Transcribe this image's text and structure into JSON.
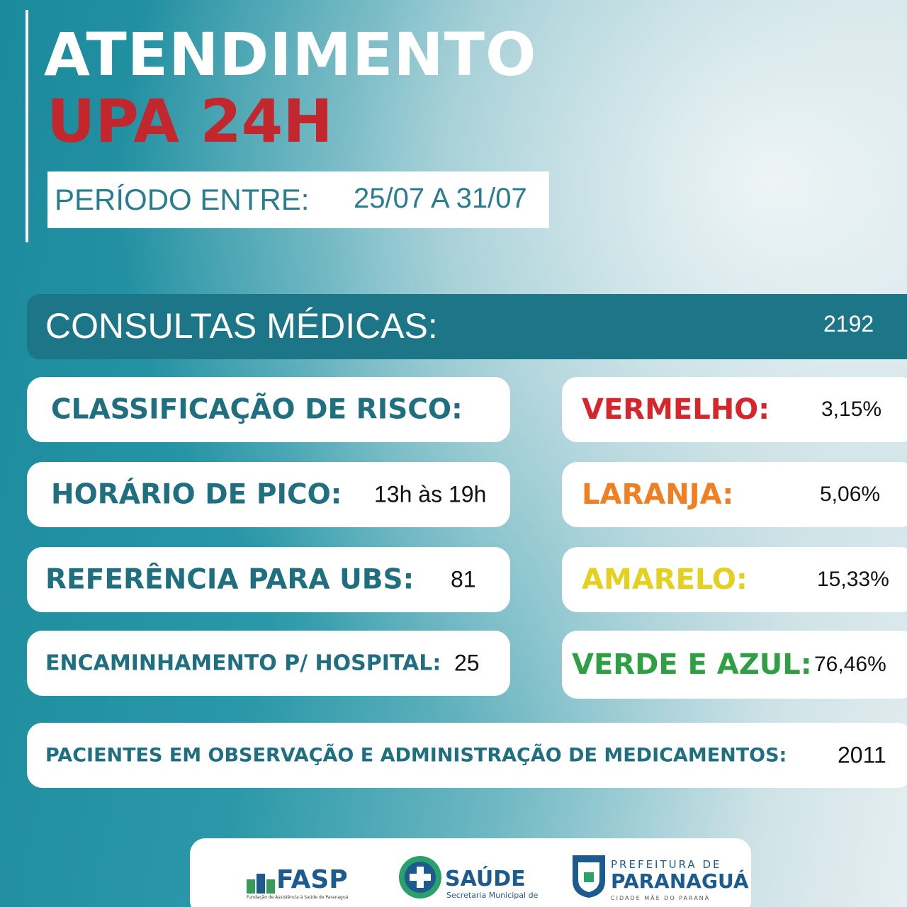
{
  "header": {
    "title": "ATENDIMENTO",
    "subtitle": "UPA 24H"
  },
  "period": {
    "label": "PERÍODO ENTRE:",
    "value": "25/07 A 31/07"
  },
  "consultas": {
    "label": "CONSULTAS MÉDICAS:",
    "value": "2192"
  },
  "info": [
    {
      "label": "CLASSIFICAÇÃO DE RISCO:"
    },
    {
      "label": "HORÁRIO DE PICO:",
      "value": "13h às 19h"
    },
    {
      "label": "REFERÊNCIA PARA UBS:",
      "value": "81"
    },
    {
      "label": "ENCAMINHAMENTO P/ HOSPITAL:",
      "value": "25"
    }
  ],
  "risk": [
    {
      "label": "VERMELHO:",
      "value": "3,15%"
    },
    {
      "label": "LARANJA:",
      "value": "5,06%"
    },
    {
      "label": "AMARELO:",
      "value": "15,33%"
    },
    {
      "label": "VERDE E AZUL:",
      "value": "76,46%"
    }
  ],
  "observacao": {
    "label": "PACIENTES EM OBSERVAÇÃO E ADMINISTRAÇÃO DE MEDICAMENTOS:",
    "value": "2011"
  },
  "footer": {
    "fasp": {
      "name": "FASP",
      "caption": "Fundação de Assistência à Saúde de Paranaguá"
    },
    "saude": {
      "name": "SAÚDE",
      "caption": "Secretaria Municipal de"
    },
    "prefeitura": {
      "top": "PREFEITURA DE",
      "name": "PARANAGUÁ",
      "caption": "CIDADE MÃE DO PARANÁ"
    }
  }
}
